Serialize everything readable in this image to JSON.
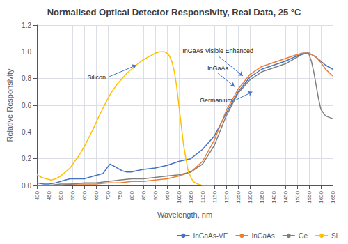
{
  "chart_data": {
    "type": "line",
    "title": "Normalised Optical Detector Responsivity, Real Data, 25 °C",
    "xlabel": "Wavelength, nm",
    "ylabel": "Relative Responsivity",
    "xlim": [
      400,
      1650
    ],
    "ylim": [
      0,
      1.2
    ],
    "xticks": [
      400,
      450,
      500,
      550,
      600,
      650,
      700,
      750,
      800,
      850,
      900,
      950,
      1000,
      1050,
      1100,
      1150,
      1200,
      1250,
      1300,
      1350,
      1400,
      1450,
      1500,
      1550,
      1600,
      1650
    ],
    "yticks": [
      {
        "value": 0,
        "label": "0.0"
      },
      0.2,
      0.4,
      0.6,
      0.8,
      {
        "value": 1.0,
        "label": "1.0"
      },
      1.2
    ],
    "grid": true,
    "legend": "lower right",
    "series": [
      {
        "name": "InGaAs-VE",
        "color": "#4472C4",
        "x": [
          400,
          430,
          450,
          480,
          500,
          520,
          540,
          560,
          580,
          600,
          620,
          640,
          660,
          680,
          700,
          710,
          720,
          730,
          740,
          750,
          760,
          780,
          800,
          820,
          850,
          900,
          950,
          1000,
          1050,
          1100,
          1150,
          1200,
          1250,
          1300,
          1350,
          1400,
          1450,
          1500,
          1520,
          1540,
          1550,
          1560,
          1580,
          1600,
          1620,
          1650
        ],
        "values": [
          0.02,
          0.01,
          0.01,
          0.02,
          0.03,
          0.04,
          0.05,
          0.05,
          0.05,
          0.05,
          0.06,
          0.07,
          0.08,
          0.09,
          0.14,
          0.16,
          0.15,
          0.14,
          0.13,
          0.12,
          0.11,
          0.1,
          0.1,
          0.11,
          0.12,
          0.13,
          0.15,
          0.18,
          0.2,
          0.27,
          0.37,
          0.54,
          0.7,
          0.81,
          0.87,
          0.9,
          0.93,
          0.97,
          0.98,
          0.99,
          0.99,
          0.98,
          0.96,
          0.93,
          0.9,
          0.87
        ]
      },
      {
        "name": "InGaAs",
        "color": "#ED7D31",
        "x": [
          400,
          450,
          500,
          550,
          600,
          650,
          700,
          750,
          800,
          850,
          900,
          950,
          1000,
          1050,
          1100,
          1150,
          1200,
          1250,
          1300,
          1350,
          1400,
          1450,
          1500,
          1520,
          1540,
          1550,
          1560,
          1580,
          1600,
          1620,
          1650
        ],
        "values": [
          0.0,
          0.0,
          0.0,
          0.01,
          0.01,
          0.01,
          0.02,
          0.02,
          0.03,
          0.03,
          0.04,
          0.05,
          0.07,
          0.1,
          0.18,
          0.34,
          0.56,
          0.72,
          0.83,
          0.89,
          0.92,
          0.95,
          0.98,
          0.99,
          0.99,
          0.99,
          0.98,
          0.96,
          0.92,
          0.87,
          0.82
        ]
      },
      {
        "name": "Ge",
        "color": "#808080",
        "x": [
          400,
          450,
          500,
          550,
          600,
          650,
          700,
          750,
          800,
          850,
          900,
          950,
          1000,
          1050,
          1100,
          1150,
          1200,
          1250,
          1300,
          1350,
          1400,
          1450,
          1500,
          1520,
          1530,
          1540,
          1545,
          1550,
          1560,
          1570,
          1580,
          1590,
          1600,
          1620,
          1650
        ],
        "values": [
          0.0,
          0.0,
          0.01,
          0.01,
          0.02,
          0.02,
          0.03,
          0.04,
          0.05,
          0.05,
          0.06,
          0.07,
          0.08,
          0.1,
          0.16,
          0.3,
          0.52,
          0.69,
          0.79,
          0.85,
          0.88,
          0.91,
          0.96,
          0.98,
          0.99,
          0.99,
          0.99,
          0.98,
          0.93,
          0.85,
          0.75,
          0.65,
          0.57,
          0.52,
          0.5
        ]
      },
      {
        "name": "Si",
        "color": "#FFC000",
        "x": [
          400,
          420,
          440,
          460,
          480,
          500,
          520,
          540,
          560,
          580,
          600,
          620,
          640,
          660,
          680,
          700,
          720,
          740,
          760,
          780,
          800,
          820,
          840,
          860,
          880,
          900,
          920,
          940,
          950,
          960,
          970,
          980,
          990,
          1000,
          1020,
          1040,
          1060,
          1080,
          1100,
          1120,
          1140,
          1150
        ],
        "values": [
          0.08,
          0.06,
          0.05,
          0.04,
          0.05,
          0.07,
          0.1,
          0.13,
          0.18,
          0.23,
          0.29,
          0.36,
          0.43,
          0.51,
          0.58,
          0.65,
          0.71,
          0.76,
          0.8,
          0.84,
          0.87,
          0.9,
          0.93,
          0.95,
          0.97,
          0.99,
          1.0,
          1.0,
          0.99,
          0.97,
          0.93,
          0.86,
          0.75,
          0.6,
          0.3,
          0.1,
          0.03,
          0.01,
          0.0,
          0.0,
          0.0,
          0.0
        ]
      }
    ],
    "annotations": [
      {
        "text": "Silicon",
        "x": 820,
        "y": 0.9,
        "text_x": 700,
        "text_y": 0.81
      },
      {
        "text": "InGaAs Visible Enhanced",
        "x": 1270,
        "y": 0.82,
        "text_x": 1165,
        "text_y": 0.97
      },
      {
        "text": "InGaAs",
        "x": 1235,
        "y": 0.74,
        "text_x": 1165,
        "text_y": 0.84
      },
      {
        "text": "Germanium",
        "x": 1310,
        "y": 0.7,
        "text_x": 1235,
        "text_y": 0.635
      }
    ]
  }
}
